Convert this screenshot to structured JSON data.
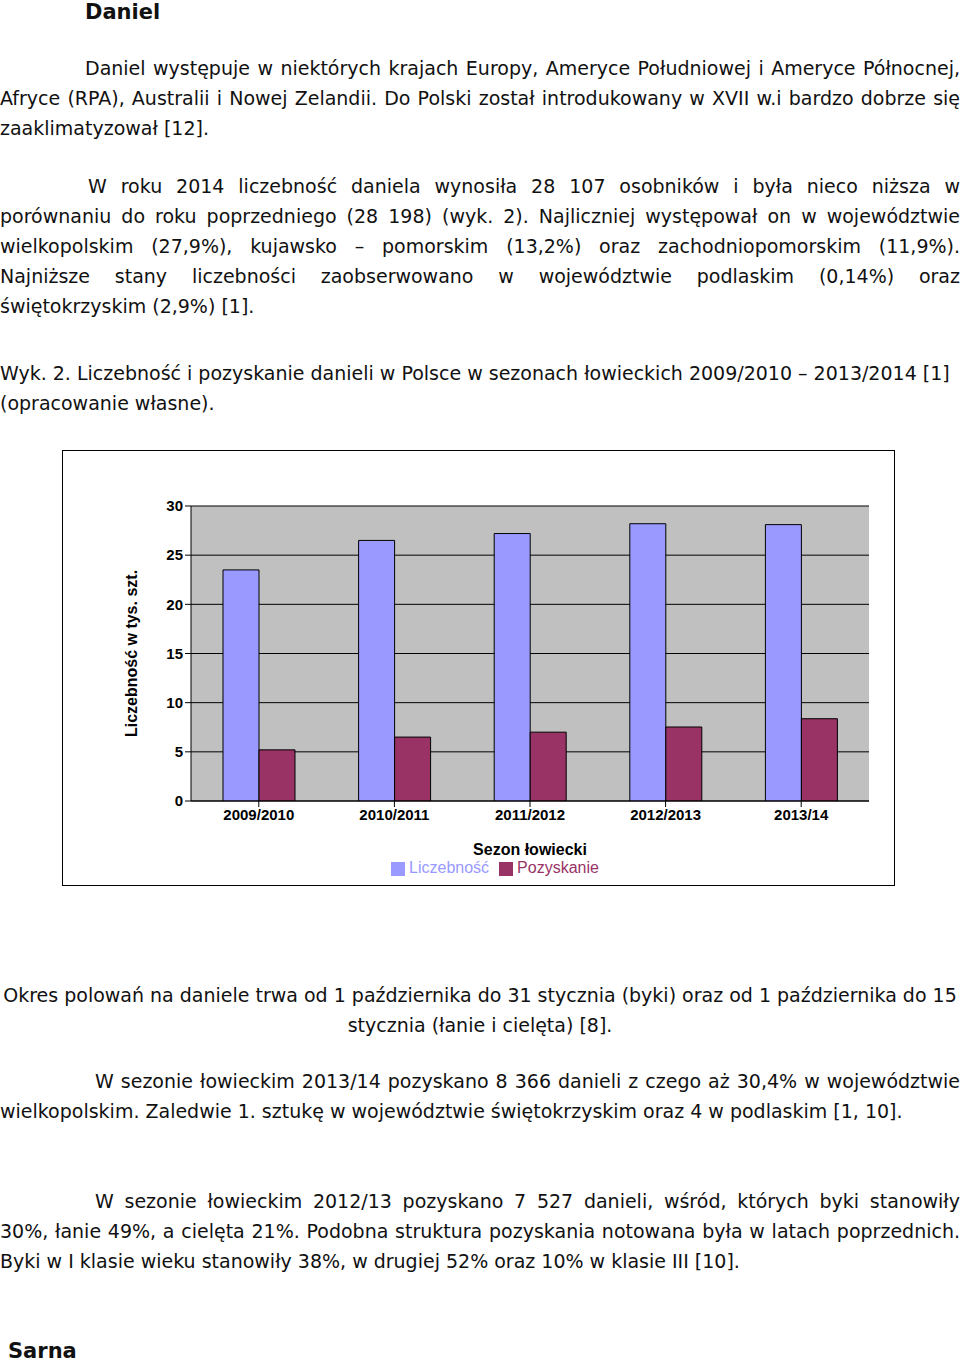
{
  "document": {
    "heading": "Daniel",
    "paragraphs": [
      "Daniel występuje w niektórych krajach Europy, Ameryce Południowej i Ameryce Północnej, Afryce (RPA), Australii i Nowej Zelandii. Do Polski został introdukowany w XVII w.i bardzo dobrze się zaaklimatyzował [12].",
      "W roku 2014 liczebność daniela wynosiła 28 107 osobników i była nieco niższa w porównaniu do roku poprzedniego (28 198) (wyk. 2). Najliczniej występował on w województwie wielkopolskim (27,9%), kujawsko – pomorskim (13,2%) oraz zachodniopomorskim (11,9%). Najniższe stany liczebności zaobserwowano w województwie podlaskim (0,14%) oraz świętokrzyskim (2,9%) [1]."
    ],
    "caption": "Wyk. 2. Liczebność i pozyskanie danieli w Polsce w sezonach łowieckich 2009/2010 – 2013/2014 [1] (opracowanie własne).",
    "paragraphs_after": [
      "Okres polowań na daniele trwa od 1 października do 31 stycznia (byki) oraz od 1 października do 15 stycznia (łanie i cielęta) [8].",
      "W sezonie łowieckim 2013/14 pozyskano 8 366 danieli z czego aż 30,4% w województwie wielkopolskim. Zaledwie 1. sztukę w województwie świętokrzyskim oraz 4 w podlaskim [1, 10].",
      "W sezonie łowieckim 2012/13 pozyskano 7 527 danieli, wśród, których byki stanowiły 30%, łanie 49%, a cielęta 21%. Podobna struktura pozyskania notowana była w latach poprzednich. Byki w I klasie wieku stanowiły 38%, w drugiej 52% oraz 10% w klasie III [10]."
    ],
    "next_heading": "Sarna"
  },
  "chart_data": {
    "type": "bar",
    "x_label": "Sezon łowiecki",
    "y_label": "Liczebność w tys. szt.",
    "categories": [
      "2009/2010",
      "2010/2011",
      "2011/2012",
      "2012/2013",
      "2013/14"
    ],
    "series": [
      {
        "name": "Liczebność",
        "color": "#9999ff",
        "values": [
          23.5,
          26.5,
          27.2,
          28.198,
          28.107
        ]
      },
      {
        "name": "Pozyskanie",
        "color": "#993366",
        "values": [
          5.2,
          6.5,
          7.0,
          7.527,
          8.366
        ]
      }
    ],
    "ylim": [
      0,
      30
    ],
    "yticks": [
      0,
      5,
      10,
      15,
      20,
      25,
      30
    ],
    "grid": true,
    "legend": "bottom"
  }
}
